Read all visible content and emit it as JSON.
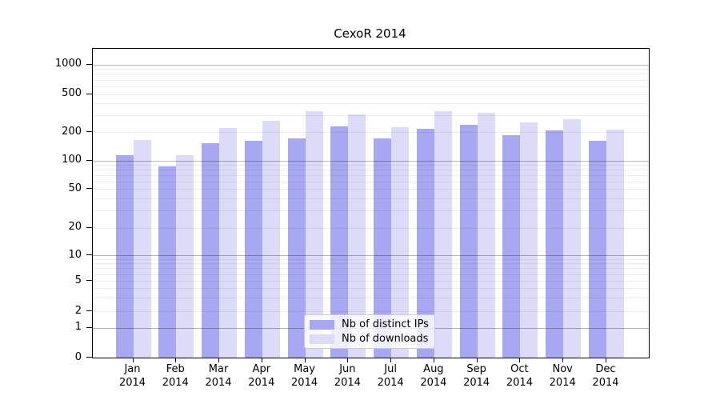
{
  "chart_data": {
    "type": "bar",
    "title": "CexoR 2014",
    "categories": [
      "Jan 2014",
      "Feb 2014",
      "Mar 2014",
      "Apr 2014",
      "May 2014",
      "Jun 2014",
      "Jul 2014",
      "Aug 2014",
      "Sep 2014",
      "Oct 2014",
      "Nov 2014",
      "Dec 2014"
    ],
    "series": [
      {
        "name": "Nb of distinct IPs",
        "color": "#a8a8f2",
        "values": [
          114,
          86,
          151,
          162,
          171,
          231,
          170,
          216,
          236,
          186,
          209,
          162
        ]
      },
      {
        "name": "Nb of downloads",
        "color": "#dcdcf9",
        "values": [
          163,
          113,
          222,
          261,
          330,
          308,
          225,
          330,
          317,
          251,
          272,
          213
        ]
      }
    ],
    "xlabel": "",
    "ylabel": "",
    "yscale": "symlog",
    "yticks": [
      0,
      1,
      2,
      5,
      10,
      20,
      50,
      100,
      200,
      500,
      1000
    ],
    "minor_gridline_values": [
      2,
      3,
      4,
      5,
      6,
      7,
      8,
      9,
      20,
      30,
      40,
      50,
      60,
      70,
      80,
      90,
      200,
      300,
      400,
      500,
      600,
      700,
      800,
      900
    ],
    "major_gridline_values": [
      1,
      10,
      100,
      1000
    ],
    "ylim": [
      0,
      1440
    ],
    "grid": true,
    "legend_position": "lower-center"
  },
  "colors": {
    "background": "#ffffff",
    "spine": "#000000",
    "minor_grid": "rgba(0,0,0,0.075)",
    "major_grid": "rgba(0,0,0,0.29)",
    "bar_distinct_ips": "#a8a8f2",
    "bar_downloads": "#dcdcf9"
  }
}
